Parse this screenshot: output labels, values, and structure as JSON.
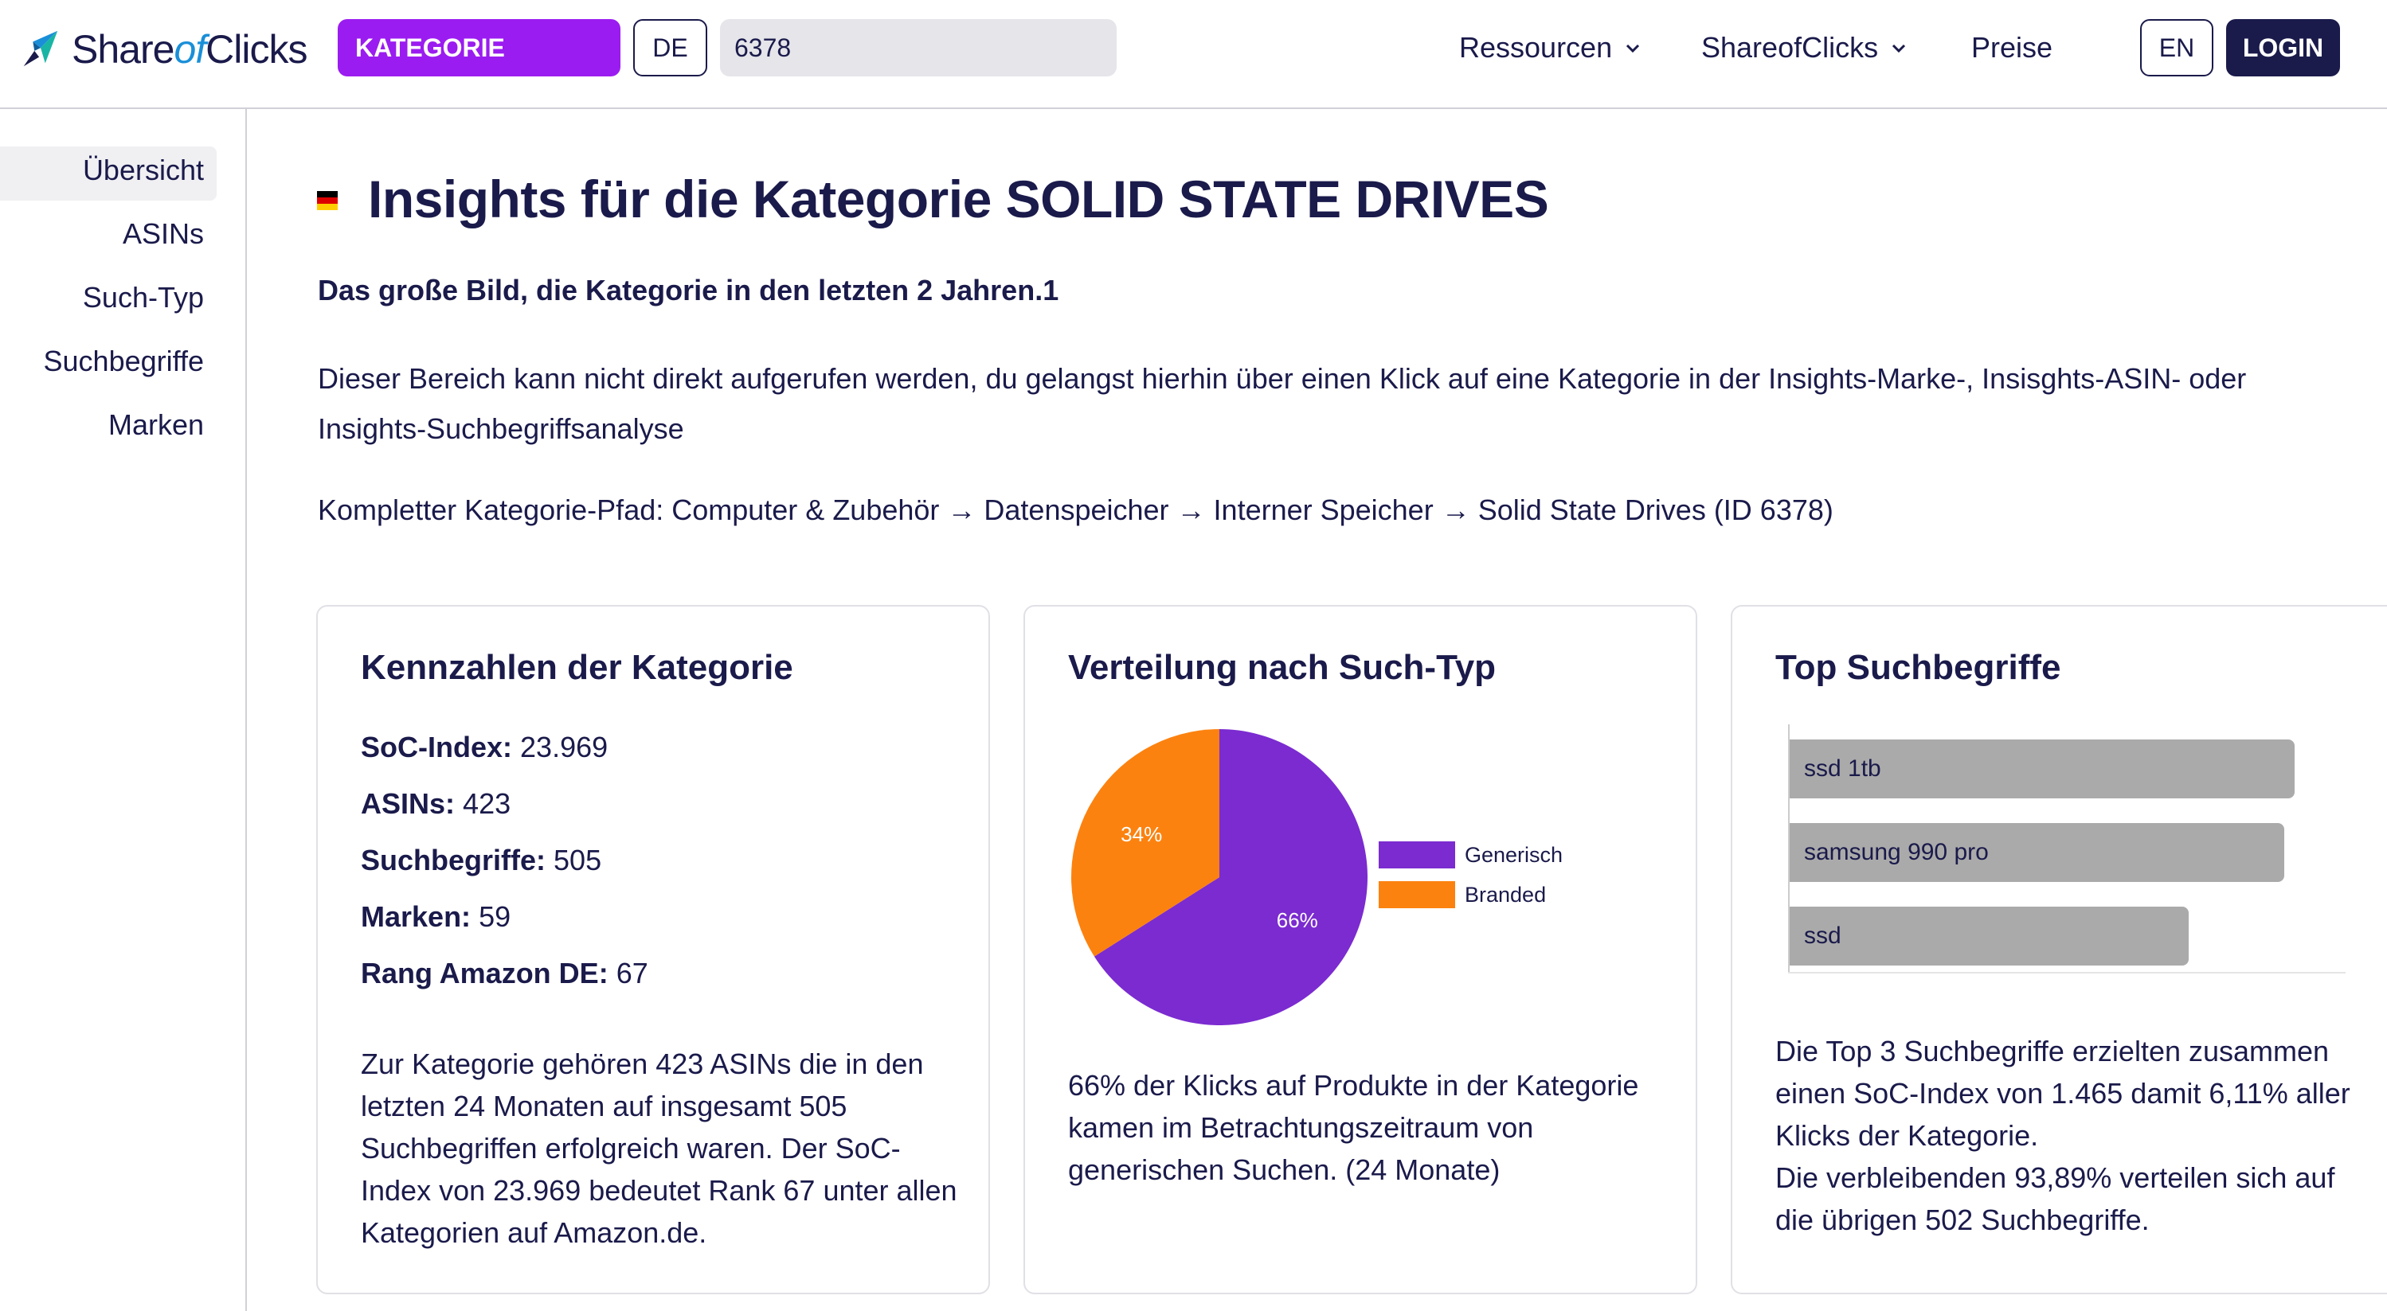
{
  "header": {
    "logo_share": "Share",
    "logo_of": "of",
    "logo_clicks": "Clicks",
    "category_button": "KATEGORIE",
    "lang_button": "DE",
    "search_value": "6378",
    "nav": [
      {
        "label": "Ressourcen",
        "icon": "chevron-down-icon"
      },
      {
        "label": "ShareofClicks",
        "icon": "chevron-down-icon"
      },
      {
        "label": "Preise"
      }
    ],
    "en_button": "EN",
    "login_button": "LOGIN"
  },
  "sidebar": {
    "items": [
      "Übersicht",
      "ASINs",
      "Such-Typ",
      "Suchbegriffe",
      "Marken"
    ],
    "active": "Übersicht"
  },
  "main": {
    "title": "Insights für die Kategorie SOLID STATE DRIVES",
    "subtitle": "Das große Bild, die Kategorie in den letzten 2 Jahren.1",
    "description": "Dieser Bereich kann nicht direkt aufgerufen werden, du gelangst hierhin über einen Klick auf eine Kategorie in der Insights-Marke-, Insisghts-ASIN- oder Insights-Suchbegriffsanalyse",
    "path": "Kompletter Kategorie-Pfad: Computer & Zubehör → Datenspeicher → Interner Speicher → Solid State Drives (ID 6378)"
  },
  "card_kpi": {
    "title": "Kennzahlen der Kategorie",
    "rows": [
      {
        "label": "SoC-Index:",
        "value": "23.969"
      },
      {
        "label": "ASINs:",
        "value": "423"
      },
      {
        "label": "Suchbegriffe:",
        "value": "505"
      },
      {
        "label": "Marken:",
        "value": "59"
      },
      {
        "label": "Rang Amazon DE:",
        "value": "67"
      }
    ],
    "text": "Zur Kategorie gehören 423 ASINs die in den letzten 24 Monaten auf insgesamt 505 Suchbegriffen erfolgreich waren. Der SoC-Index von 23.969 bedeutet Rank 67 unter allen Kategorien auf Amazon.de."
  },
  "card_pie": {
    "title": "Verteilung nach Such-Typ",
    "text": "66% der Klicks auf Produkte in der Kategorie kamen im Betrachtungszeitraum von generischen Suchen. (24 Monate)"
  },
  "card_terms": {
    "title": "Top Suchbegriffe",
    "text_line1": "Die Top 3 Suchbegriffe erzielten zusammen einen SoC-Index von 1.465 damit 6,11% aller Klicks der Kategorie.",
    "text_line2": "Die verbleibenden 93,89% verteilen sich auf die übrigen 502 Suchbegriffe."
  },
  "chart_data": [
    {
      "type": "pie",
      "categories": [
        "Generisch",
        "Branded"
      ],
      "values": [
        66,
        34
      ],
      "labels": [
        "66%",
        "34%"
      ],
      "colors": [
        "#7b2bd0",
        "#fc820f"
      ],
      "legend": "right"
    },
    {
      "type": "bar",
      "orientation": "horizontal",
      "categories": [
        "ssd 1tb",
        "samsung 990 pro",
        "ssd"
      ],
      "values": [
        1.0,
        0.98,
        0.79
      ],
      "color": "#aaaaaa"
    }
  ],
  "colors": {
    "brand_dark": "#1a1a4b",
    "category_purple": "#9b1cf0",
    "generic_purple": "#7b2bd0",
    "branded_orange": "#fc820f"
  }
}
